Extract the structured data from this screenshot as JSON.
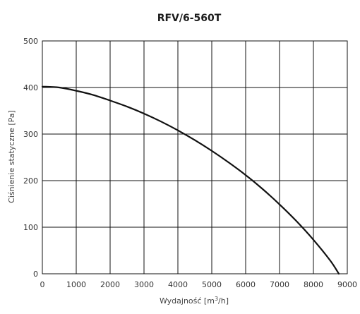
{
  "chart_data": {
    "type": "line",
    "title": "RFV/6-560T",
    "xlabel_prefix": "Wydajność [m",
    "xlabel_sup": "3",
    "xlabel_suffix": "/h]",
    "ylabel": "Ciśnienie statyczne [Pa]",
    "xlim": [
      0,
      9000
    ],
    "ylim": [
      0,
      500
    ],
    "x_ticks": [
      0,
      1000,
      2000,
      3000,
      4000,
      5000,
      6000,
      7000,
      8000,
      9000
    ],
    "y_ticks": [
      0,
      100,
      200,
      300,
      400,
      500
    ],
    "x_tick_labels": [
      "0",
      "1000",
      "2000",
      "3000",
      "4000",
      "5000",
      "6000",
      "7000",
      "8000",
      "9000"
    ],
    "y_tick_labels": [
      "0",
      "100",
      "200",
      "300",
      "400",
      "500"
    ],
    "grid": true,
    "series": [
      {
        "x": [
          0,
          500,
          1000,
          1500,
          2000,
          2500,
          3000,
          3500,
          4000,
          4500,
          5000,
          5500,
          6000,
          6500,
          7000,
          7500,
          8000,
          8500,
          8750
        ],
        "y": [
          402,
          400,
          393,
          384,
          372,
          359,
          344,
          327,
          308,
          287,
          264,
          239,
          212,
          182,
          149,
          113,
          73,
          28,
          0
        ]
      }
    ],
    "colors": {
      "line": "#111111",
      "grid": "#111111",
      "text": "#333333"
    }
  }
}
